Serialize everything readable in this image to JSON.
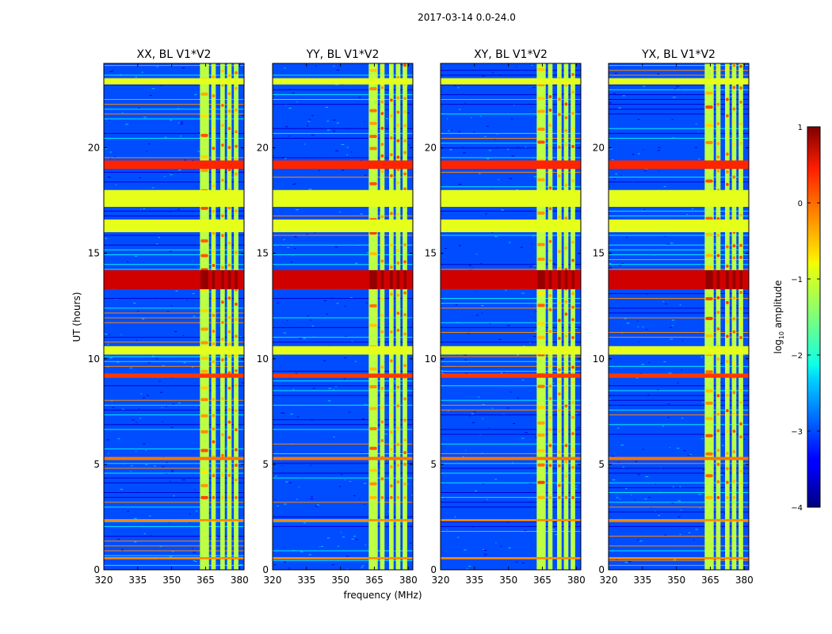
{
  "chart_data": {
    "type": "heatmap",
    "suptitle": "2017-03-14 0.0-24.0",
    "xlabel": "frequency (MHz)",
    "ylabel": "UT (hours)",
    "xlim": [
      320,
      382
    ],
    "ylim": [
      0,
      24
    ],
    "xticks": [
      320,
      335,
      350,
      365,
      380
    ],
    "xtick_labels": [
      "320",
      "335",
      "350",
      "365",
      "380"
    ],
    "yticks": [
      0,
      5,
      10,
      15,
      20
    ],
    "ytick_labels": [
      "0",
      "5",
      "10",
      "15",
      "20"
    ],
    "panels": [
      {
        "title": "XX, BL V1*V2"
      },
      {
        "title": "YY, BL V1*V2"
      },
      {
        "title": "XY, BL V1*V2"
      },
      {
        "title": "YX, BL V1*V2"
      }
    ],
    "colorbar": {
      "label_prefix": "log",
      "label_sub": "10",
      "label_suffix": " amplitude",
      "range": [
        -4,
        1
      ],
      "ticks": [
        1,
        0,
        -1,
        -2,
        -3,
        -4
      ],
      "tick_labels": [
        "1",
        "0",
        "−1",
        "−2",
        "−3",
        "−4"
      ],
      "colormap": "jet"
    },
    "background_level": -3.0,
    "signal_bands_mhz": [
      [
        362.5,
        366.5
      ],
      [
        367.5,
        369.5
      ],
      [
        371.5,
        373.5
      ],
      [
        374.5,
        376.5
      ],
      [
        377.5,
        379.5
      ]
    ],
    "flagged_time_bands_hours": [
      [
        23.0,
        23.3
      ],
      [
        17.2,
        18.0
      ],
      [
        16.0,
        16.6
      ],
      [
        10.2,
        10.6
      ]
    ],
    "bright_time_bands": [
      {
        "start": 13.3,
        "end": 14.2,
        "level": 0.6
      },
      {
        "start": 19.0,
        "end": 19.4,
        "level": 0.2
      },
      {
        "start": 9.1,
        "end": 9.3,
        "level": 0.1
      },
      {
        "start": 5.2,
        "end": 5.35,
        "level": -0.2
      },
      {
        "start": 0.5,
        "end": 0.6,
        "level": -0.3
      },
      {
        "start": 2.3,
        "end": 2.4,
        "level": -0.3
      }
    ]
  }
}
